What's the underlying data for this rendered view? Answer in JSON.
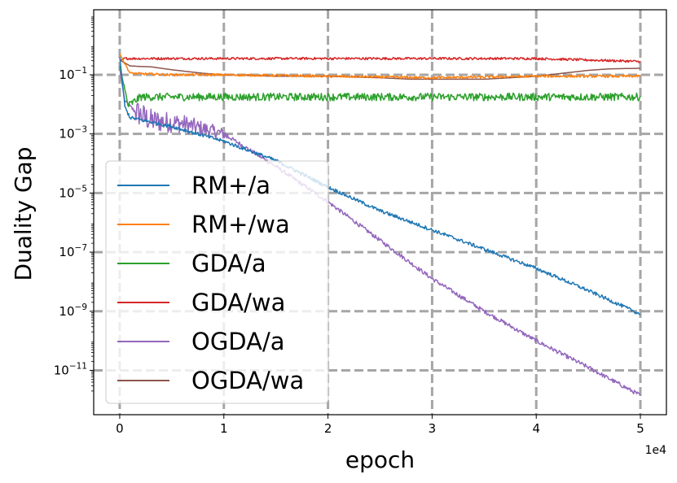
{
  "chart_data": {
    "type": "line",
    "title": "",
    "xlabel": "epoch",
    "ylabel": "Duality Gap",
    "x_offset_label": "1e4",
    "xlim": [
      -2500,
      52500
    ],
    "ylim_log10": [
      -12.5,
      1.2
    ],
    "yscale": "log",
    "grid": true,
    "grid_style": "dashed",
    "legend_position": "lower-left",
    "x_ticks": [
      {
        "value": 0,
        "label": "0"
      },
      {
        "value": 10000,
        "label": "1"
      },
      {
        "value": 20000,
        "label": "2"
      },
      {
        "value": 30000,
        "label": "3"
      },
      {
        "value": 40000,
        "label": "4"
      },
      {
        "value": 50000,
        "label": "5"
      }
    ],
    "y_ticks": [
      {
        "exp": -1,
        "label": "10",
        "sup": "−1"
      },
      {
        "exp": -3,
        "label": "10",
        "sup": "−3"
      },
      {
        "exp": -5,
        "label": "10",
        "sup": "−5"
      },
      {
        "exp": -7,
        "label": "10",
        "sup": "−7"
      },
      {
        "exp": -9,
        "label": "10",
        "sup": "−9"
      },
      {
        "exp": -11,
        "label": "10",
        "sup": "−11"
      }
    ],
    "series": [
      {
        "name": "RM+/a",
        "color": "#1f77b4",
        "noise": 0.06,
        "points": [
          [
            0,
            -0.4
          ],
          [
            300,
            -1.4
          ],
          [
            500,
            -2.1
          ],
          [
            1000,
            -2.45
          ],
          [
            5000,
            -2.75
          ],
          [
            10000,
            -3.25
          ],
          [
            15000,
            -3.9
          ],
          [
            20000,
            -4.8
          ],
          [
            25000,
            -5.6
          ],
          [
            30000,
            -6.25
          ],
          [
            35000,
            -6.9
          ],
          [
            40000,
            -7.55
          ],
          [
            45000,
            -8.3
          ],
          [
            50000,
            -9.1
          ]
        ]
      },
      {
        "name": "RM+/wa",
        "color": "#ff7f0e",
        "noise": 0.04,
        "points": [
          [
            0,
            -0.3
          ],
          [
            1000,
            -0.95
          ],
          [
            5000,
            -1.0
          ],
          [
            10000,
            -1.0
          ],
          [
            20000,
            -1.05
          ],
          [
            30000,
            -1.1
          ],
          [
            40000,
            -1.05
          ],
          [
            50000,
            -1.05
          ]
        ]
      },
      {
        "name": "GDA/a",
        "color": "#2ca02c",
        "noise": 0.13,
        "points": [
          [
            0,
            -0.7
          ],
          [
            800,
            -2.05
          ],
          [
            2000,
            -1.75
          ],
          [
            10000,
            -1.75
          ],
          [
            20000,
            -1.75
          ],
          [
            30000,
            -1.75
          ],
          [
            40000,
            -1.75
          ],
          [
            50000,
            -1.75
          ]
        ]
      },
      {
        "name": "GDA/wa",
        "color": "#d62728",
        "noise": 0.04,
        "points": [
          [
            0,
            -0.5
          ],
          [
            500,
            -0.45
          ],
          [
            2000,
            -0.45
          ],
          [
            10000,
            -0.45
          ],
          [
            20000,
            -0.45
          ],
          [
            30000,
            -0.45
          ],
          [
            40000,
            -0.45
          ],
          [
            50000,
            -0.55
          ]
        ]
      },
      {
        "name": "OGDA/a",
        "color": "#9467bd",
        "noise": 0.07,
        "points": [
          [
            0,
            -0.8
          ],
          [
            500,
            -1.9
          ],
          [
            1500,
            -2.25
          ],
          [
            3000,
            -2.55
          ],
          [
            6000,
            -2.65
          ],
          [
            10000,
            -3.0
          ],
          [
            15000,
            -4.1
          ],
          [
            20000,
            -5.3
          ],
          [
            25000,
            -6.6
          ],
          [
            30000,
            -7.9
          ],
          [
            35000,
            -9.0
          ],
          [
            40000,
            -10.0
          ],
          [
            45000,
            -10.9
          ],
          [
            50000,
            -11.85
          ]
        ]
      },
      {
        "name": "OGDA/wa",
        "color": "#8c564b",
        "noise": 0.0,
        "points": [
          [
            0,
            -0.5
          ],
          [
            1000,
            -0.7
          ],
          [
            2000,
            -0.72
          ],
          [
            3000,
            -0.73
          ],
          [
            5000,
            -0.83
          ],
          [
            8000,
            -0.95
          ],
          [
            10000,
            -1.0
          ],
          [
            15000,
            -1.05
          ],
          [
            20000,
            -1.05
          ],
          [
            25000,
            -1.1
          ],
          [
            28000,
            -1.15
          ],
          [
            30000,
            -1.15
          ],
          [
            35000,
            -1.15
          ],
          [
            40000,
            -1.05
          ],
          [
            45000,
            -0.85
          ],
          [
            47000,
            -0.8
          ],
          [
            50000,
            -0.78
          ]
        ]
      }
    ]
  }
}
